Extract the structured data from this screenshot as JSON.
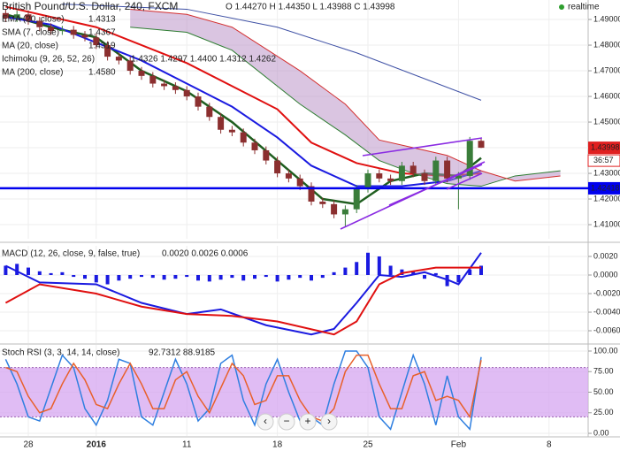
{
  "realtime": "realtime",
  "timer": "36:57",
  "controls": [
    "‹",
    "−",
    "+",
    "›"
  ],
  "x_axis": {
    "categories": [
      null,
      null,
      "28",
      null,
      null,
      null,
      null,
      null,
      "2016",
      null,
      null,
      null,
      null,
      null,
      null,
      null,
      "11",
      null,
      null,
      null,
      null,
      null,
      null,
      null,
      "18",
      null,
      null,
      null,
      null,
      null,
      null,
      null,
      "25",
      null,
      null,
      null,
      null,
      null,
      null,
      null,
      "Feb",
      null,
      null,
      null,
      null,
      null,
      null,
      null,
      "8",
      null
    ]
  },
  "chart_data": [
    {
      "type": "candlestick",
      "title": "British Pound/U.S. Dollar, 240, FXCM",
      "ohlc_label": "O 1.44270 H 1.44350 L 1.43988 C 1.43998",
      "up_color": "#3a7d3a",
      "down_color": "#8b2f2f",
      "open": [
        1.4925,
        1.4905,
        1.492,
        1.4895,
        1.487,
        1.4855,
        1.486,
        1.484,
        1.483,
        1.48,
        1.4755,
        1.474,
        1.47,
        1.468,
        1.465,
        1.464,
        1.4625,
        1.46,
        1.456,
        1.452,
        1.447,
        1.446,
        1.442,
        1.439,
        1.435,
        1.43,
        1.428,
        1.425,
        1.419,
        1.418,
        1.414,
        1.416,
        1.424,
        1.43,
        1.428,
        1.427,
        1.433,
        1.43,
        1.427,
        1.435,
        1.428,
        1.429,
        1.4427
      ],
      "high": [
        1.494,
        1.4935,
        1.4935,
        1.491,
        1.4885,
        1.4875,
        1.4875,
        1.4855,
        1.4845,
        1.4815,
        1.477,
        1.4755,
        1.4715,
        1.4695,
        1.4665,
        1.4655,
        1.464,
        1.4615,
        1.4575,
        1.4535,
        1.4485,
        1.4475,
        1.4435,
        1.4405,
        1.4365,
        1.4315,
        1.4295,
        1.4265,
        1.4205,
        1.4195,
        1.4175,
        1.4255,
        1.4315,
        1.4315,
        1.4295,
        1.4345,
        1.4345,
        1.4315,
        1.4365,
        1.4365,
        1.4305,
        1.4442,
        1.4435
      ],
      "low": [
        1.489,
        1.489,
        1.488,
        1.4855,
        1.484,
        1.484,
        1.4825,
        1.4815,
        1.4785,
        1.474,
        1.4725,
        1.4685,
        1.4665,
        1.4635,
        1.4625,
        1.461,
        1.4585,
        1.4545,
        1.4505,
        1.4455,
        1.4445,
        1.4405,
        1.4375,
        1.4335,
        1.4285,
        1.4265,
        1.4235,
        1.4175,
        1.4165,
        1.4125,
        1.409,
        1.4145,
        1.4225,
        1.4265,
        1.4255,
        1.4255,
        1.4285,
        1.4255,
        1.4255,
        1.4265,
        1.416,
        1.4275,
        1.43988
      ],
      "close": [
        1.4905,
        1.492,
        1.4895,
        1.487,
        1.4855,
        1.486,
        1.484,
        1.483,
        1.48,
        1.4755,
        1.474,
        1.47,
        1.468,
        1.465,
        1.464,
        1.4625,
        1.46,
        1.456,
        1.452,
        1.447,
        1.446,
        1.442,
        1.439,
        1.435,
        1.43,
        1.428,
        1.425,
        1.419,
        1.418,
        1.414,
        1.416,
        1.424,
        1.43,
        1.428,
        1.427,
        1.433,
        1.43,
        1.427,
        1.435,
        1.428,
        1.429,
        1.4427,
        1.43998
      ],
      "series": [
        {
          "name": "EMA (20, close)",
          "label": "1.4313",
          "color": "#e01010",
          "width": 2,
          "x": [
            0,
            8,
            16,
            24,
            27,
            31,
            35,
            39,
            42
          ],
          "values": [
            1.495,
            1.487,
            1.473,
            1.455,
            1.442,
            1.434,
            1.43,
            1.429,
            1.43
          ]
        },
        {
          "name": "SMA (7, close)",
          "label": "1.4367",
          "color": "#1f5e1f",
          "width": 2.5,
          "x": [
            0,
            4,
            8,
            12,
            16,
            20,
            24,
            28,
            31,
            34,
            37,
            40,
            42
          ],
          "values": [
            1.492,
            1.487,
            1.483,
            1.47,
            1.462,
            1.45,
            1.435,
            1.42,
            1.418,
            1.427,
            1.43,
            1.429,
            1.436
          ]
        },
        {
          "name": "MA (20, close)",
          "label": "1.4319",
          "color": "#1a1ae0",
          "width": 2,
          "x": [
            0,
            4,
            8,
            12,
            16,
            20,
            24,
            27,
            31,
            35,
            39,
            42
          ],
          "values": [
            1.491,
            1.488,
            1.481,
            1.474,
            1.465,
            1.456,
            1.444,
            1.433,
            1.425,
            1.425,
            1.427,
            1.431
          ]
        },
        {
          "name": "Ichimoku (9, 26, 52, 26)",
          "label": "1.4326 1.4297 1.4400 1.4312 1.4262",
          "kind": "cloud",
          "color": "#2e7d32",
          "color_b": "#d32f2f",
          "fill": "#b58cc4",
          "x": [
            11,
            16,
            20,
            26,
            30,
            33,
            36,
            39,
            42,
            45,
            49
          ],
          "values": [
            1.487,
            1.485,
            1.478,
            1.457,
            1.445,
            1.435,
            1.43,
            1.426,
            1.425,
            1.429,
            1.431
          ],
          "values_b": [
            1.494,
            1.492,
            1.487,
            1.47,
            1.457,
            1.443,
            1.44,
            1.437,
            1.431,
            1.427,
            1.429
          ]
        },
        {
          "name": "MA (200, close)",
          "label": "1.4580",
          "color": "#3f51a5",
          "width": 1,
          "x": [
            5,
            16,
            24,
            31,
            42
          ],
          "values": [
            1.496,
            1.494,
            1.487,
            1.477,
            1.4585
          ]
        }
      ],
      "hline": {
        "value": 1.42418,
        "label": "1.42418",
        "color": "#0000ee"
      },
      "last_label": {
        "value": 1.43998,
        "label": "1.43998",
        "color": "#e02020"
      },
      "ylim": [
        1.4045,
        1.4976
      ],
      "yticks": [
        {
          "value": 1.41,
          "label": "1.41000"
        },
        {
          "value": 1.42,
          "label": "1.42000"
        },
        {
          "value": 1.43,
          "label": "1.43000"
        },
        {
          "value": 1.44,
          "label": "1.44000"
        },
        {
          "value": 1.45,
          "label": "1.45000"
        },
        {
          "value": 1.46,
          "label": "1.46000"
        },
        {
          "value": 1.47,
          "label": "1.47000"
        },
        {
          "value": 1.48,
          "label": "1.48000"
        },
        {
          "value": 1.49,
          "label": "1.49000"
        }
      ],
      "grid": true
    },
    {
      "type": "line",
      "title": "MACD (12, 26, close, 9, false, true)",
      "title_label": "0.0020 0.0026 0.0006",
      "title_color": "#1a1ae0",
      "series": [
        {
          "name": "Histogram",
          "kind": "bar",
          "color": "#1a1ae0",
          "values": [
            0.001,
            0.0012,
            0.0008,
            0.0004,
            0.0002,
            0.0003,
            -0.0002,
            -0.0004,
            -0.0008,
            -0.001,
            -0.0006,
            -0.0004,
            -0.0002,
            -0.0003,
            -0.0005,
            -0.0004,
            -0.0002,
            -0.0006,
            -0.0007,
            -0.0005,
            -0.0003,
            -0.0006,
            -0.0004,
            -0.0002,
            -0.0007,
            -0.0005,
            -0.0003,
            -0.0006,
            -0.0003,
            0.0003,
            0.0008,
            0.0014,
            0.0024,
            0.002,
            0.001,
            0.0006,
            0.0004,
            -0.0004,
            0.0002,
            -0.0012,
            -0.0008,
            0.0006,
            0.001
          ]
        },
        {
          "name": "MACD",
          "color": "#1a1ae0",
          "width": 2,
          "x": [
            0,
            3,
            8,
            12,
            16,
            19,
            23,
            27,
            29,
            31,
            33,
            35,
            37,
            39,
            40,
            42
          ],
          "values": [
            0.001,
            -0.0008,
            -0.001,
            -0.003,
            -0.0042,
            -0.0037,
            -0.0054,
            -0.0064,
            -0.0058,
            -0.003,
            0.0,
            -0.0002,
            0.0003,
            -0.0005,
            -0.001,
            0.0024
          ]
        },
        {
          "name": "Signal",
          "color": "#e01010",
          "width": 2,
          "x": [
            0,
            3,
            8,
            12,
            16,
            20,
            24,
            29,
            31,
            33,
            35,
            38,
            42
          ],
          "values": [
            -0.003,
            -0.001,
            -0.002,
            -0.0034,
            -0.0042,
            -0.0044,
            -0.005,
            -0.0064,
            -0.005,
            -0.001,
            0.0002,
            0.0008,
            0.0008
          ]
        }
      ],
      "ylim": [
        -0.00733,
        0.00314
      ],
      "yticks": [
        {
          "value": -0.006,
          "label": "-0.0060"
        },
        {
          "value": -0.004,
          "label": "-0.0040"
        },
        {
          "value": -0.002,
          "label": "-0.0020"
        },
        {
          "value": 0,
          "label": "0.0000"
        },
        {
          "value": 0.002,
          "label": "0.0020"
        }
      ],
      "grid": true
    },
    {
      "type": "line",
      "title": "Stoch RSI (3, 3, 14, 14, close)",
      "title_label": "92.7312 88.9185",
      "title_color": "#1a6ae0",
      "band": [
        20,
        80
      ],
      "band_color": "#d6a6f0",
      "series": [
        {
          "name": "K",
          "color": "#2f7fe0",
          "width": 1.5,
          "values": [
            90,
            60,
            20,
            15,
            55,
            95,
            80,
            30,
            10,
            40,
            90,
            85,
            20,
            10,
            50,
            90,
            60,
            15,
            30,
            85,
            95,
            40,
            10,
            60,
            90,
            50,
            15,
            20,
            10,
            60,
            100,
            100,
            80,
            20,
            5,
            50,
            95,
            60,
            10,
            70,
            20,
            5,
            92.7312
          ]
        },
        {
          "name": "D",
          "color": "#e8602a",
          "width": 1.5,
          "values": [
            80,
            75,
            45,
            25,
            30,
            60,
            85,
            65,
            35,
            30,
            60,
            85,
            60,
            30,
            30,
            65,
            75,
            45,
            25,
            55,
            85,
            70,
            35,
            40,
            70,
            70,
            40,
            20,
            15,
            30,
            75,
            95,
            95,
            60,
            30,
            30,
            70,
            75,
            40,
            45,
            40,
            20,
            88.9185
          ]
        }
      ],
      "ylim": [
        -3.2,
        107.5
      ],
      "yticks": [
        {
          "value": 0,
          "label": "0.00"
        },
        {
          "value": 25,
          "label": "25.00"
        },
        {
          "value": 50,
          "label": "50.00"
        },
        {
          "value": 75,
          "label": "75.00"
        },
        {
          "value": 100,
          "label": "100.00"
        }
      ],
      "grid": true
    }
  ]
}
